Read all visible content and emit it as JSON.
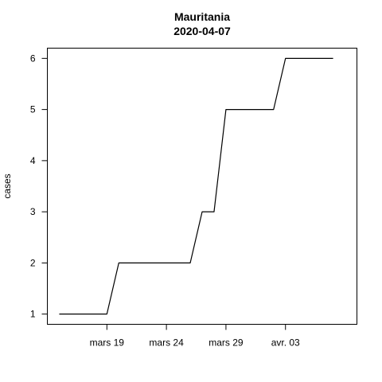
{
  "chart_data": {
    "type": "line",
    "title": "Mauritania",
    "subtitle": "2020-04-07",
    "xlabel": "",
    "ylabel": "cases",
    "x_tick_labels": [
      "mars 19",
      "mars 24",
      "mars 29",
      "avr. 03"
    ],
    "y_tick_labels": [
      "1",
      "2",
      "3",
      "4",
      "5",
      "6"
    ],
    "x_ticks": [
      "2020-03-19",
      "2020-03-24",
      "2020-03-29",
      "2020-04-03"
    ],
    "y_ticks": [
      1,
      2,
      3,
      4,
      5,
      6
    ],
    "xlim": [
      "2020-03-14",
      "2020-04-09"
    ],
    "ylim": [
      0.8,
      6.2
    ],
    "grid": false,
    "series": [
      {
        "x": [
          "2020-03-15",
          "2020-03-16",
          "2020-03-17",
          "2020-03-18",
          "2020-03-19",
          "2020-03-20",
          "2020-03-21",
          "2020-03-22",
          "2020-03-23",
          "2020-03-24",
          "2020-03-25",
          "2020-03-26",
          "2020-03-27",
          "2020-03-28",
          "2020-03-29",
          "2020-03-30",
          "2020-03-31",
          "2020-04-01",
          "2020-04-02",
          "2020-04-03",
          "2020-04-04",
          "2020-04-05",
          "2020-04-06",
          "2020-04-07"
        ],
        "values": [
          1,
          1,
          1,
          1,
          1,
          2,
          2,
          2,
          2,
          2,
          2,
          2,
          3,
          3,
          5,
          5,
          5,
          5,
          5,
          6,
          6,
          6,
          6,
          6
        ]
      }
    ]
  }
}
